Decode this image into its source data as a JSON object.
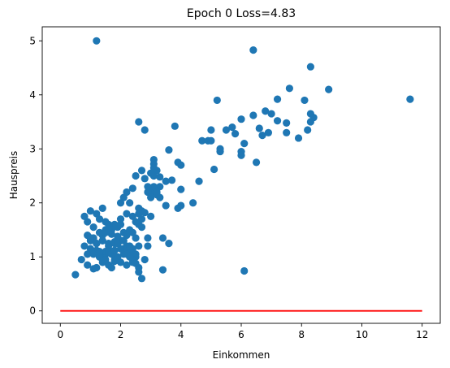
{
  "chart_data": {
    "type": "scatter",
    "title": "Epoch 0 Loss=4.83",
    "xlabel": "Einkommen",
    "ylabel": "Hauspreis",
    "xlim": [
      -0.6,
      12.6
    ],
    "ylim": [
      -0.23,
      5.26
    ],
    "xticks": [
      0,
      2,
      4,
      6,
      8,
      10,
      12
    ],
    "yticks": [
      0,
      1,
      2,
      3,
      4,
      5
    ],
    "grid": false,
    "legend": "none",
    "colors": {
      "points": "#1f77b4",
      "line": "#ff0000"
    },
    "scatter": {
      "x": [
        1.2,
        6.4,
        8.3,
        11.6,
        8.9,
        7.6,
        7.2,
        8.1,
        8.3,
        8.4,
        6.4,
        5.2,
        5.7,
        6.0,
        5.8,
        6.6,
        6.8,
        7.0,
        7.2,
        7.5,
        7.5,
        8.2,
        8.3,
        7.9,
        6.7,
        6.9,
        6.1,
        5.0,
        5.3,
        5.5,
        4.9,
        5.0,
        5.3,
        6.0,
        6.0,
        6.5,
        5.1,
        4.6,
        4.7,
        3.8,
        3.6,
        3.1,
        3.1,
        2.6,
        2.8,
        3.9,
        4.0,
        3.7,
        3.2,
        3.1,
        3.0,
        3.3,
        3.5,
        4.0,
        3.3,
        3.9,
        4.4,
        2.8,
        2.7,
        3.0,
        3.1,
        3.2,
        3.3,
        2.9,
        2.9,
        3.0,
        3.2,
        3.1,
        2.5,
        2.4,
        2.1,
        2.2,
        2.0,
        2.3,
        2.6,
        2.7,
        2.6,
        2.8,
        3.0,
        3.5,
        4.0,
        2.6,
        2.7,
        2.5,
        2.4,
        2.2,
        2.0,
        1.9,
        1.8,
        1.7,
        1.5,
        1.3,
        1.1,
        1.4,
        1.6,
        1.2,
        0.8,
        0.9,
        1.0,
        0.9,
        1.1,
        1.3,
        1.5,
        1.7,
        1.9,
        2.1,
        2.3,
        2.5,
        2.7,
        2.9,
        3.4,
        3.6,
        1.0,
        0.8,
        1.0,
        1.2,
        1.4,
        1.6,
        1.8,
        2.0,
        2.2,
        2.4,
        2.6,
        0.7,
        0.9,
        1.1,
        1.3,
        1.5,
        1.7,
        1.9,
        2.1,
        2.3,
        2.5,
        0.5,
        0.9,
        1.2,
        1.4,
        1.6,
        1.8,
        2.0,
        2.2,
        2.4,
        2.6,
        2.8,
        3.4,
        6.1,
        1.0,
        1.2,
        1.5,
        1.7,
        1.9,
        2.1,
        2.3,
        2.5,
        2.6,
        1.1,
        1.3,
        1.5,
        1.6,
        1.8,
        2.0,
        2.2,
        2.4,
        1.4,
        1.6,
        1.8,
        2.0,
        1.2,
        1.4,
        1.9,
        2.1,
        1.5,
        1.7,
        2.2,
        2.4,
        2.9,
        1.0,
        1.3,
        1.8,
        2.3,
        2.7,
        1.6,
        2.0,
        2.5,
        1.1,
        1.7
      ],
      "y": [
        5.0,
        4.83,
        4.52,
        3.92,
        4.1,
        4.12,
        3.92,
        3.9,
        3.65,
        3.58,
        3.62,
        3.9,
        3.4,
        3.55,
        3.28,
        3.38,
        3.7,
        3.65,
        3.52,
        3.48,
        3.3,
        3.35,
        3.5,
        3.2,
        3.25,
        3.3,
        3.1,
        3.35,
        3.0,
        3.35,
        3.15,
        3.15,
        2.95,
        2.95,
        2.88,
        2.75,
        2.62,
        2.4,
        3.15,
        3.42,
        2.98,
        2.8,
        2.72,
        3.5,
        3.35,
        2.75,
        2.7,
        2.42,
        2.6,
        2.5,
        2.55,
        2.48,
        2.4,
        2.25,
        2.3,
        1.9,
        2.0,
        2.45,
        2.6,
        2.2,
        2.3,
        2.15,
        2.1,
        2.2,
        2.3,
        2.1,
        2.2,
        2.65,
        2.5,
        2.27,
        2.1,
        2.2,
        2.0,
        2.0,
        1.9,
        1.85,
        1.8,
        1.82,
        1.75,
        1.95,
        1.95,
        1.6,
        1.7,
        1.65,
        1.75,
        1.8,
        1.7,
        1.55,
        1.6,
        1.55,
        1.65,
        1.7,
        1.55,
        1.9,
        1.6,
        1.8,
        1.75,
        1.65,
        1.85,
        1.4,
        1.35,
        1.45,
        1.5,
        1.42,
        1.38,
        1.45,
        1.5,
        1.35,
        1.55,
        1.35,
        1.35,
        1.25,
        1.3,
        1.2,
        1.15,
        1.25,
        1.3,
        1.2,
        1.25,
        1.3,
        1.2,
        1.15,
        1.2,
        0.95,
        1.05,
        1.1,
        1.0,
        1.05,
        1.1,
        1.0,
        1.05,
        1.1,
        1.05,
        0.67,
        0.85,
        0.8,
        0.9,
        0.85,
        0.95,
        0.9,
        0.85,
        0.9,
        0.8,
        0.95,
        0.76,
        0.74,
        1.35,
        1.12,
        1.1,
        1.05,
        1.0,
        1.15,
        1.2,
        1.0,
        0.72,
        1.05,
        1.0,
        0.95,
        1.08,
        1.12,
        1.15,
        1.05,
        0.95,
        1.3,
        1.25,
        1.28,
        1.3,
        1.25,
        1.4,
        1.25,
        1.3,
        1.45,
        1.5,
        1.4,
        1.45,
        1.2,
        1.35,
        1.1,
        0.92,
        1.0,
        0.6,
        1.52,
        1.6,
        0.88,
        0.78,
        0.8
      ],
      "marker": "circle"
    },
    "line": {
      "x": [
        0,
        12
      ],
      "y": [
        0,
        0
      ]
    }
  }
}
